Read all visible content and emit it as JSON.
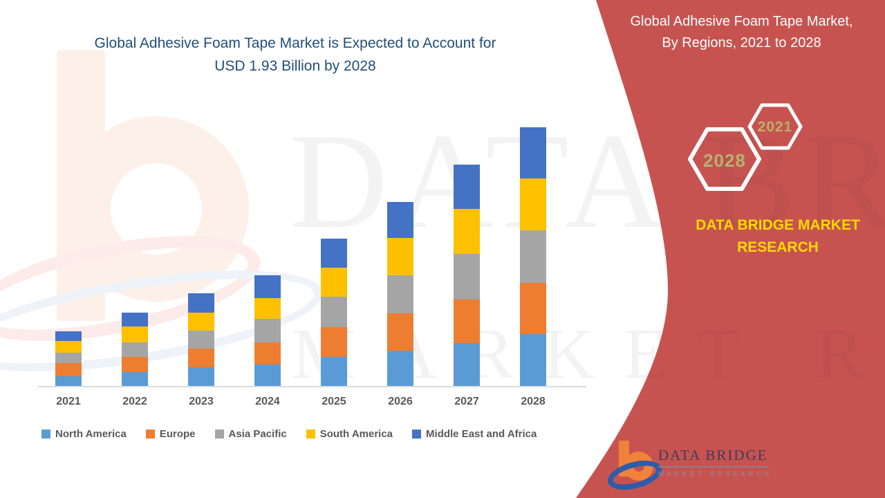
{
  "left_panel": {
    "title_line1": "Global Adhesive Foam Tape Market is Expected to Account for",
    "title_line2": "USD 1.93 Billion by 2028"
  },
  "right_panel": {
    "title_line1": "Global Adhesive Foam Tape Market,",
    "title_line2": "By Regions, 2021 to 2028",
    "hexagons": [
      {
        "label": "2028"
      },
      {
        "label": "2021"
      }
    ],
    "brand_line1": "DATA BRIDGE MARKET",
    "brand_line2": "RESEARCH",
    "panel_color": "#c75350",
    "brand_text_color": "#ffd900",
    "hex_year_color": "#b6b26f"
  },
  "watermark": {
    "line1": "DATA BRIDGE",
    "line2": "MARKET RESEARCH"
  },
  "logo": {
    "name": "DATA BRIDGE",
    "subtitle": "MARKET RESEARCH"
  },
  "chart_data": {
    "type": "bar",
    "stacked": true,
    "unit": "USD Billion",
    "title": "Global Adhesive Foam Tape Market is Expected to Account for USD 1.93 Billion by 2028",
    "xlabel": "",
    "ylabel": "",
    "ylim": [
      0,
      2.0
    ],
    "gridlines": false,
    "legend_position": "bottom",
    "categories": [
      "2021",
      "2022",
      "2023",
      "2024",
      "2025",
      "2026",
      "2027",
      "2028"
    ],
    "series": [
      {
        "name": "North America",
        "color": "#5b9bd5",
        "values": [
          0.075,
          0.103,
          0.139,
          0.16,
          0.217,
          0.263,
          0.32,
          0.387
        ]
      },
      {
        "name": "Europe",
        "color": "#ed7d31",
        "values": [
          0.095,
          0.114,
          0.139,
          0.165,
          0.222,
          0.279,
          0.325,
          0.382
        ]
      },
      {
        "name": "Asia Pacific",
        "color": "#a5a5a5",
        "values": [
          0.077,
          0.108,
          0.134,
          0.175,
          0.227,
          0.284,
          0.34,
          0.392
        ]
      },
      {
        "name": "South America",
        "color": "#ffc000",
        "values": [
          0.088,
          0.119,
          0.134,
          0.155,
          0.217,
          0.279,
          0.335,
          0.387
        ]
      },
      {
        "name": "Middle East and Africa",
        "color": "#4472c4",
        "values": [
          0.074,
          0.103,
          0.145,
          0.17,
          0.217,
          0.268,
          0.33,
          0.382
        ]
      }
    ],
    "totals_estimated": [
      0.41,
      0.55,
      0.69,
      0.83,
      1.1,
      1.37,
      1.65,
      1.93
    ]
  }
}
